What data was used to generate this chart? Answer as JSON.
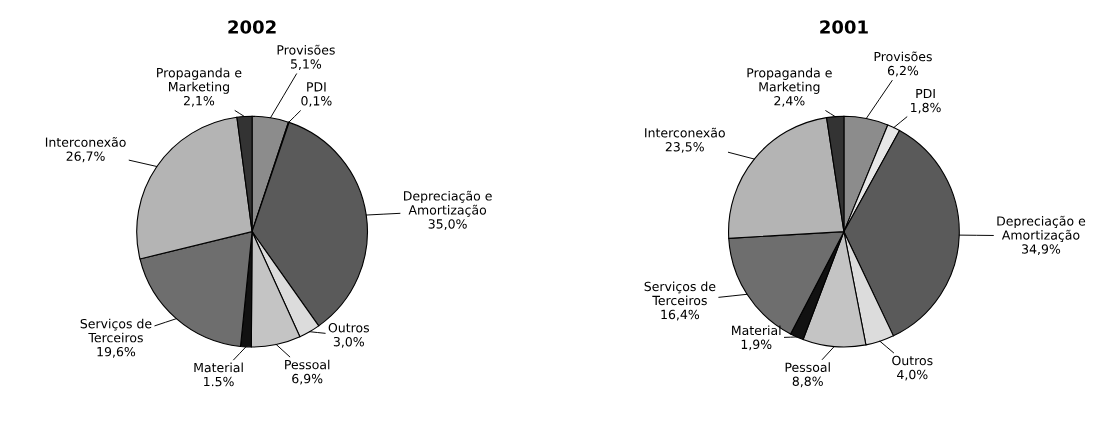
{
  "chart_data": [
    {
      "type": "pie",
      "title": "2002",
      "categories": [
        "Provisões",
        "PDI",
        "Depreciação e\nAmortização",
        "Outros",
        "Pessoal",
        "Material",
        "Serviços de\nTerceiros",
        "Interconexão",
        "Propaganda e\nMarketing"
      ],
      "values": [
        5.1,
        0.1,
        35.0,
        3.0,
        6.9,
        1.5,
        19.6,
        26.7,
        2.1
      ],
      "value_labels": [
        "5,1%",
        "0,1%",
        "35,0%",
        "3,0%",
        "6,9%",
        "1.5%",
        "19,6%",
        "26,7%",
        "2,1%"
      ],
      "colors": [
        "#8c8c8c",
        "#e6e6e6",
        "#5a5a5a",
        "#dcdcdc",
        "#c4c4c4",
        "#111111",
        "#6e6e6e",
        "#b4b4b4",
        "#333333"
      ]
    },
    {
      "type": "pie",
      "title": "2001",
      "categories": [
        "Provisões",
        "PDI",
        "Depreciação e\nAmortização",
        "Outros",
        "Pessoal",
        "Material",
        "Serviços de\nTerceiros",
        "Interconexão",
        "Propaganda e\nMarketing"
      ],
      "values": [
        6.2,
        1.8,
        34.9,
        4.0,
        8.8,
        1.9,
        16.4,
        23.5,
        2.4
      ],
      "value_labels": [
        "6,2%",
        "1,8%",
        "34,9%",
        "4,0%",
        "8,8%",
        "1,9%",
        "16,4%",
        "23,5%",
        "2,4%"
      ],
      "colors": [
        "#8c8c8c",
        "#e6e6e6",
        "#5a5a5a",
        "#dcdcdc",
        "#c4c4c4",
        "#111111",
        "#6e6e6e",
        "#b4b4b4",
        "#333333"
      ]
    }
  ]
}
